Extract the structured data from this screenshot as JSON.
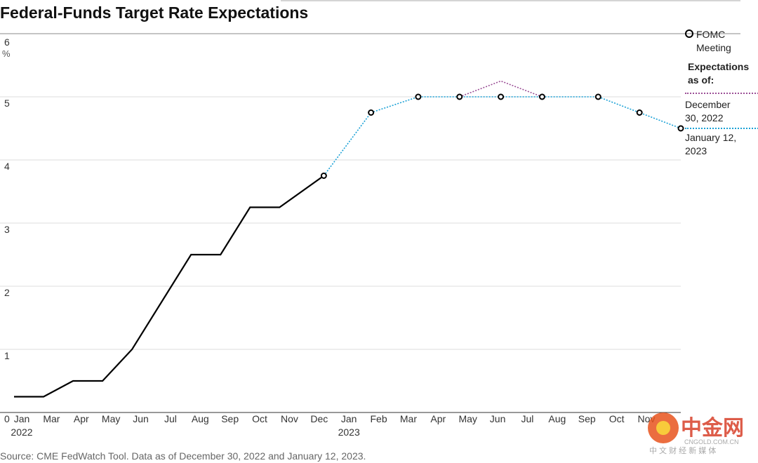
{
  "chart_data": {
    "type": "line",
    "title": "Federal-Funds Target Rate Expectations",
    "y_unit": "%",
    "source": "Source: CME FedWatch Tool. Data as of December 30, 2022 and January 12, 2023.",
    "categories": [
      "Jan",
      "Mar",
      "Apr",
      "May",
      "Jun",
      "Jul",
      "Aug",
      "Sep",
      "Oct",
      "Nov",
      "Dec",
      "Jan",
      "Feb",
      "Mar",
      "Apr",
      "May",
      "Jun",
      "Jul",
      "Aug",
      "Sep",
      "Oct",
      "Nov"
    ],
    "sublabels": [
      "2022",
      null,
      null,
      null,
      null,
      null,
      null,
      null,
      null,
      null,
      null,
      "2023",
      null,
      null,
      null,
      null,
      null,
      null,
      null,
      null,
      null,
      null
    ],
    "xlim": [
      0,
      22.6
    ],
    "ylim": [
      0,
      6
    ],
    "yticks": [
      0,
      1,
      2,
      3,
      4,
      5,
      6
    ],
    "grid": true,
    "marker_label": "FOMC Meeting",
    "legend_title": "Expectations as of:",
    "series": [
      {
        "color": "#000000",
        "style": "solid",
        "x": [
          0,
          1,
          2,
          3,
          4,
          6,
          7,
          8,
          9,
          10.5
        ],
        "values": [
          0.25,
          0.25,
          0.5,
          0.5,
          1.0,
          2.5,
          2.5,
          3.25,
          3.25,
          3.75
        ]
      },
      {
        "name": "December 30, 2022",
        "color": "#9b4f96",
        "style": "dotted",
        "x": [
          15.1,
          16.5,
          17.9
        ],
        "values": [
          5,
          5.25,
          5
        ]
      },
      {
        "name": "January 12, 2023",
        "color": "#1aa1d6",
        "style": "dotted",
        "markers": true,
        "x": [
          10.5,
          12.1,
          13.7,
          15.1,
          16.5,
          17.9,
          19.8,
          21.2,
          22.6
        ],
        "values": [
          3.75,
          4.75,
          5,
          5,
          5,
          5,
          5,
          4.75,
          4.5
        ]
      }
    ],
    "watermark": {
      "name": "中金网",
      "site": "CNGOLD.COM.CN",
      "tagline": "中 文 财 经 新 媒 体"
    }
  }
}
